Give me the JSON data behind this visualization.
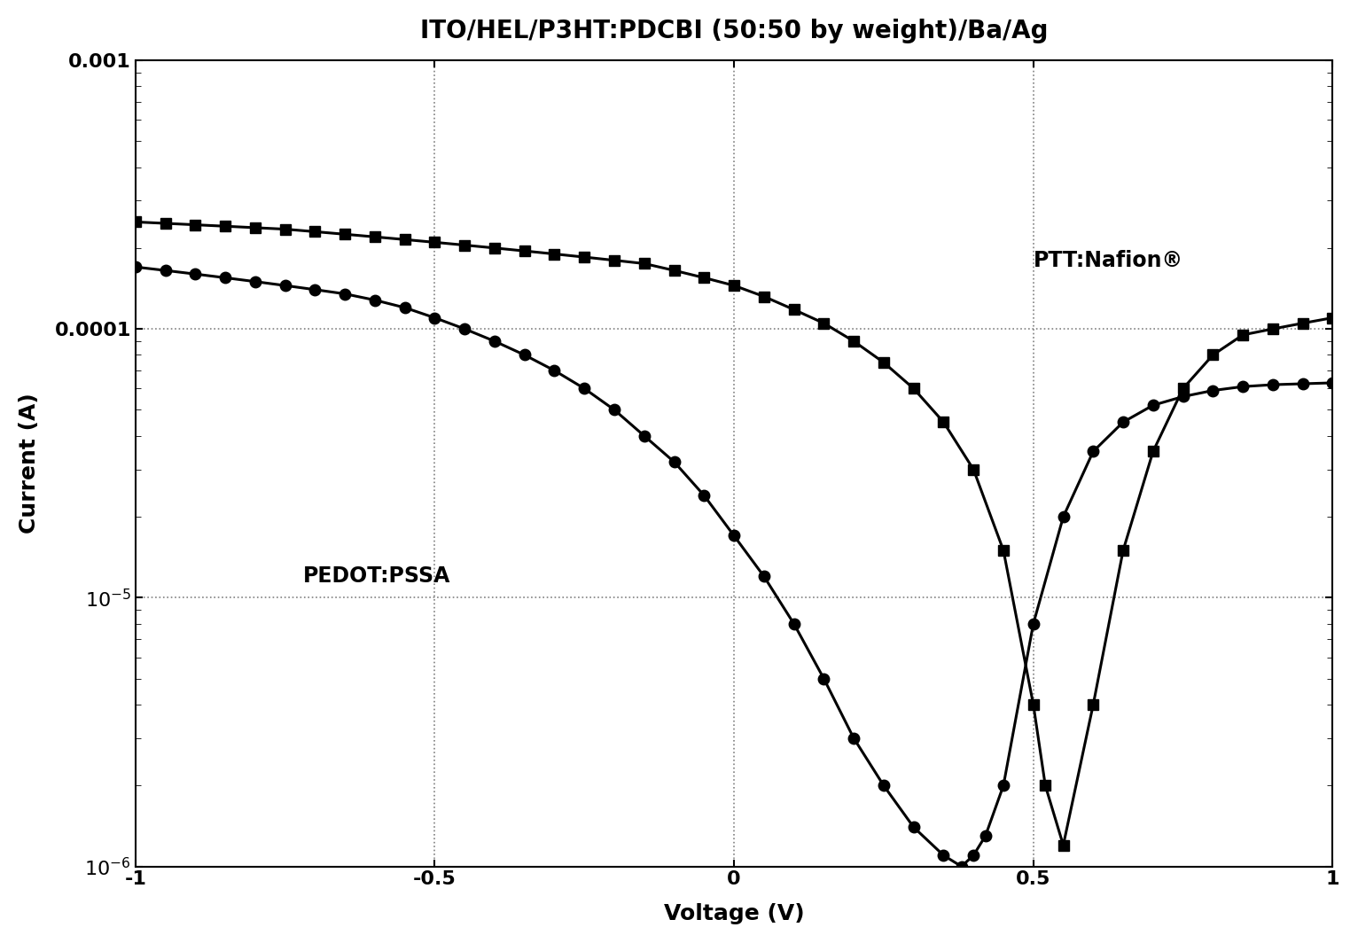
{
  "title": "ITO/HEL/P3HT:PDCBI (50:50 by weight)/Ba/Ag",
  "xlabel": "Voltage (V)",
  "ylabel": "Current (A)",
  "xlim": [
    -1.0,
    1.0
  ],
  "ylim_log": [
    1e-06,
    0.001
  ],
  "xticks": [
    -1.0,
    -0.5,
    0.0,
    0.5,
    1.0
  ],
  "label_nafion": "PTT:Nafion®",
  "label_pedot": "PEDOT:PSSA",
  "background_color": "#ffffff",
  "line_color": "#000000",
  "grid_color": "#808080",
  "title_fontsize": 20,
  "axis_label_fontsize": 18,
  "tick_fontsize": 16,
  "annotation_fontsize": 17,
  "nafion_x": [
    -1.0,
    -0.95,
    -0.9,
    -0.85,
    -0.8,
    -0.75,
    -0.7,
    -0.65,
    -0.6,
    -0.55,
    -0.5,
    -0.45,
    -0.4,
    -0.35,
    -0.3,
    -0.25,
    -0.2,
    -0.15,
    -0.1,
    -0.05,
    0.0,
    0.05,
    0.1,
    0.15,
    0.2,
    0.25,
    0.3,
    0.35,
    0.4,
    0.45,
    0.5,
    0.52,
    0.55,
    0.6,
    0.65,
    0.7,
    0.75,
    0.8,
    0.85,
    0.9,
    0.95,
    1.0
  ],
  "nafion_y": [
    0.00025,
    0.000247,
    0.000244,
    0.000241,
    0.000238,
    0.000235,
    0.00023,
    0.000225,
    0.00022,
    0.000215,
    0.00021,
    0.000205,
    0.0002,
    0.000195,
    0.00019,
    0.000185,
    0.00018,
    0.000175,
    0.000165,
    0.000155,
    0.000145,
    0.000132,
    0.000118,
    0.000105,
    9e-05,
    7.5e-05,
    6e-05,
    4.5e-05,
    3e-05,
    1.5e-05,
    4e-06,
    2e-06,
    1.2e-06,
    4e-06,
    1.5e-05,
    3.5e-05,
    6e-05,
    8e-05,
    9.5e-05,
    0.0001,
    0.000105,
    0.00011
  ],
  "pedot_x": [
    -1.0,
    -0.95,
    -0.9,
    -0.85,
    -0.8,
    -0.75,
    -0.7,
    -0.65,
    -0.6,
    -0.55,
    -0.5,
    -0.45,
    -0.4,
    -0.35,
    -0.3,
    -0.25,
    -0.2,
    -0.15,
    -0.1,
    -0.05,
    0.0,
    0.05,
    0.1,
    0.15,
    0.2,
    0.25,
    0.3,
    0.35,
    0.38,
    0.4,
    0.42,
    0.45,
    0.5,
    0.55,
    0.6,
    0.65,
    0.7,
    0.75,
    0.8,
    0.85,
    0.9,
    0.95,
    1.0
  ],
  "pedot_y": [
    0.00017,
    0.000165,
    0.00016,
    0.000155,
    0.00015,
    0.000145,
    0.00014,
    0.000135,
    0.000128,
    0.00012,
    0.00011,
    0.0001,
    9e-05,
    8e-05,
    7e-05,
    6e-05,
    5e-05,
    4e-05,
    3.2e-05,
    2.4e-05,
    1.7e-05,
    1.2e-05,
    8e-06,
    5e-06,
    3e-06,
    2e-06,
    1.4e-06,
    1.1e-06,
    1e-06,
    1.1e-06,
    1.3e-06,
    2e-06,
    8e-06,
    2e-05,
    3.5e-05,
    4.5e-05,
    5.2e-05,
    5.6e-05,
    5.9e-05,
    6.1e-05,
    6.2e-05,
    6.25e-05,
    6.3e-05
  ]
}
